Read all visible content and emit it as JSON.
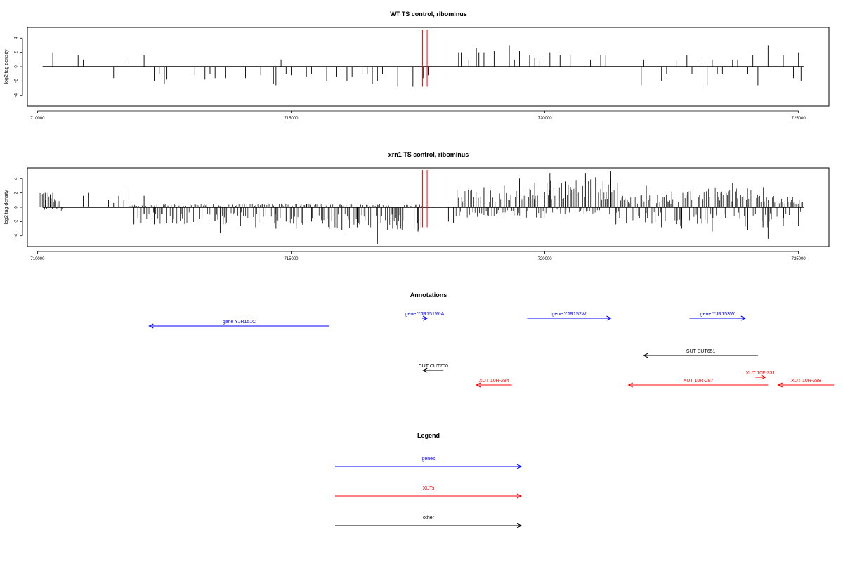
{
  "colors": {
    "gene": "#0000ff",
    "xut": "#ff0000",
    "other": "#000000",
    "marker": "#ff0000"
  },
  "chart_data": [
    {
      "type": "bar",
      "title": "WT TS control, ribominus",
      "ylabel": "log2 tag density",
      "xlim": [
        709800,
        725600
      ],
      "ylim": [
        -5.5,
        5.5
      ],
      "x_ticks": [
        710000,
        715000,
        720000,
        725000
      ],
      "y_ticks": [
        -4,
        -2,
        0,
        2,
        4
      ],
      "grid": false,
      "marker_x": [
        717590,
        717680
      ],
      "bars": {
        "x": [
          710300,
          710800,
          710900,
          711500,
          711800,
          712100,
          712300,
          712400,
          712500,
          712550,
          713100,
          713300,
          713400,
          713500,
          713700,
          714100,
          714400,
          714650,
          714700,
          714800,
          714900,
          715000,
          715300,
          715400,
          715700,
          715900,
          716100,
          716200,
          716400,
          716500,
          716600,
          716700,
          716800,
          717100,
          717400,
          717600,
          717700,
          718300,
          718350,
          718500,
          718650,
          718700,
          718800,
          719000,
          719300,
          719400,
          719500,
          719700,
          719800,
          719900,
          720100,
          720300,
          720500,
          720900,
          721100,
          721200,
          721900,
          721950,
          722300,
          722400,
          722600,
          722800,
          722900,
          723100,
          723200,
          723300,
          723400,
          723500,
          723700,
          723800,
          724000,
          724100,
          724200,
          724400,
          724700,
          724900,
          725000,
          725050
        ],
        "y": [
          2.0,
          1.6,
          1.0,
          -1.6,
          1.0,
          1.6,
          -2.0,
          -1.0,
          -2.4,
          -1.8,
          -1.2,
          -1.8,
          -1.0,
          -1.6,
          -1.6,
          -1.6,
          -1.2,
          -2.4,
          -2.6,
          1.0,
          -1.0,
          -1.2,
          -1.4,
          -1.0,
          -2.0,
          -1.4,
          -2.0,
          -1.4,
          -1.0,
          -1.0,
          -2.4,
          -2.0,
          -1.0,
          -2.8,
          -2.8,
          -1.6,
          -1.2,
          2.0,
          2.0,
          1.0,
          2.6,
          2.0,
          2.0,
          2.2,
          3.0,
          1.0,
          2.2,
          1.6,
          1.2,
          1.0,
          2.0,
          1.6,
          1.6,
          1.0,
          1.6,
          1.6,
          -2.6,
          1.0,
          -2.0,
          -1.0,
          1.0,
          1.6,
          -1.0,
          1.2,
          -2.6,
          1.0,
          -1.0,
          -1.0,
          1.0,
          1.0,
          -1.0,
          1.6,
          -2.6,
          3.0,
          1.6,
          -1.6,
          2.0,
          -2.0
        ]
      }
    },
    {
      "type": "bar",
      "title": "xrn1 TS control, ribominus",
      "ylabel": "log2 tag density",
      "xlim": [
        709800,
        725600
      ],
      "ylim": [
        -5.5,
        5.5
      ],
      "x_ticks": [
        710000,
        715000,
        720000,
        725000
      ],
      "y_ticks": [
        -4,
        -2,
        0,
        2,
        4
      ],
      "grid": false,
      "marker_x": [
        717590,
        717680
      ],
      "bars": {
        "x": [
          710150,
          710250,
          710300,
          710400,
          710900,
          711000,
          711400,
          711500,
          711600,
          711700,
          711800,
          711900,
          712100,
          712300,
          713100,
          713200,
          713600,
          714000,
          714300,
          714700,
          714900,
          715100,
          715200,
          715300,
          715400,
          716000,
          716300,
          716700,
          717000,
          717200,
          717500,
          718100,
          718200,
          718500,
          718800,
          719200,
          719500,
          719800,
          720100,
          720400,
          720800,
          721000,
          721300,
          721400,
          722000,
          722300,
          722700,
          723300,
          723700,
          724000,
          724300,
          724400,
          724700,
          725000
        ],
        "y": [
          2.0,
          1.8,
          2.0,
          0.5,
          1.6,
          2.0,
          1.0,
          0.6,
          1.6,
          1.0,
          2.4,
          -2.4,
          1.6,
          -2.4,
          0.5,
          -2.4,
          -3.6,
          -2.6,
          -2.8,
          -3.0,
          -2.0,
          -3.0,
          -2.2,
          0.4,
          -2.0,
          -3.2,
          -2.8,
          -5.2,
          -3.0,
          -2.6,
          -3.4,
          -2.0,
          -2.2,
          2.6,
          2.8,
          3.0,
          4.0,
          3.4,
          4.8,
          3.6,
          4.8,
          4.2,
          5.0,
          -2.4,
          3.0,
          -2.8,
          -3.0,
          -3.4,
          3.4,
          -3.2,
          -2.8,
          -4.4,
          -2.6,
          -2.6
        ]
      },
      "density": {
        "bands": [
          {
            "from": 710050,
            "to": 710500,
            "pos": 2.0,
            "neg": 0.5
          },
          {
            "from": 711800,
            "to": 713200,
            "pos": 0.4,
            "neg": 2.4
          },
          {
            "from": 713200,
            "to": 715000,
            "pos": 0.5,
            "neg": 2.4
          },
          {
            "from": 715000,
            "to": 715600,
            "pos": 0.5,
            "neg": 2.6
          },
          {
            "from": 715600,
            "to": 717600,
            "pos": 0.4,
            "neg": 3.6
          },
          {
            "from": 718250,
            "to": 720000,
            "pos": 2.6,
            "neg": 1.6
          },
          {
            "from": 720000,
            "to": 721450,
            "pos": 4.0,
            "neg": 1.0
          },
          {
            "from": 721450,
            "to": 722500,
            "pos": 1.8,
            "neg": 2.4
          },
          {
            "from": 722500,
            "to": 724400,
            "pos": 2.8,
            "neg": 2.8
          },
          {
            "from": 724400,
            "to": 725100,
            "pos": 1.8,
            "neg": 2.4
          }
        ]
      }
    }
  ],
  "annotations": {
    "title": "Annotations",
    "items": [
      {
        "label": "gene YJR151C",
        "start": 715750,
        "end": 712200,
        "row": "b",
        "cls": "gene"
      },
      {
        "label": "gene YJR151W-A",
        "start": 717580,
        "end": 717680,
        "row": "a",
        "cls": "gene"
      },
      {
        "label": "gene YJR152W",
        "start": 719650,
        "end": 721300,
        "row": "a",
        "cls": "gene"
      },
      {
        "label": "gene YJR153W",
        "start": 722850,
        "end": 723950,
        "row": "a",
        "cls": "gene"
      },
      {
        "label": "SUT SUT651",
        "start": 724200,
        "end": 721950,
        "row": "c",
        "cls": "other"
      },
      {
        "label": "CUT CUT700",
        "start": 718000,
        "end": 717600,
        "row": "d",
        "cls": "other"
      },
      {
        "label": "XUT 10F-331",
        "start": 724150,
        "end": 724350,
        "row": "e",
        "cls": "xut"
      },
      {
        "label": "XUT 10R-284",
        "start": 719350,
        "end": 718650,
        "row": "f",
        "cls": "xut"
      },
      {
        "label": "XUT 10R-287",
        "start": 724400,
        "end": 721650,
        "row": "f",
        "cls": "xut"
      },
      {
        "label": "XUT 10R-288",
        "start": 725700,
        "end": 724600,
        "row": "f",
        "cls": "xut"
      }
    ]
  },
  "legend": {
    "title": "Legend",
    "items": [
      {
        "label": "genes",
        "cls": "gene"
      },
      {
        "label": "XUTs",
        "cls": "xut"
      },
      {
        "label": "other",
        "cls": "other"
      }
    ]
  }
}
